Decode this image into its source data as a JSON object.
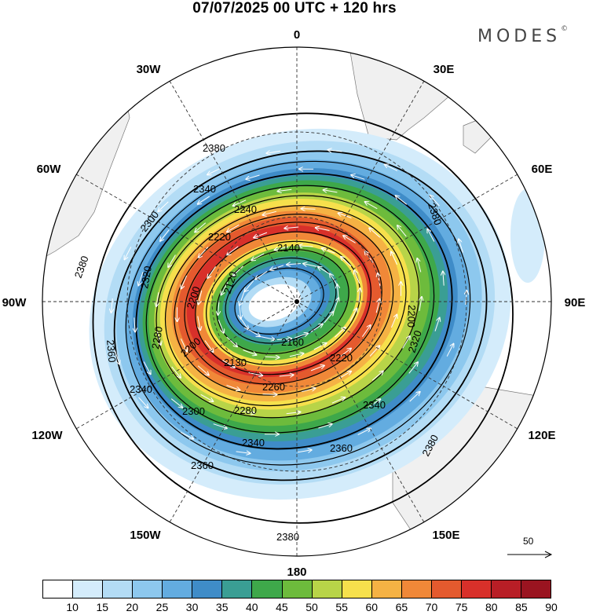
{
  "title": "07/07/2025  00 UTC  + 120 hrs",
  "brand": {
    "name": "MODES",
    "mark": "©"
  },
  "map": {
    "projection": "south-polar-stereographic",
    "longitude_labels": [
      "0",
      "30E",
      "60E",
      "90E",
      "120E",
      "150E",
      "180",
      "150W",
      "120W",
      "90W",
      "60W",
      "30W"
    ],
    "contour_labels": [
      "2380",
      "2360",
      "2340",
      "2320",
      "2300",
      "2280",
      "2260",
      "2240",
      "2220",
      "2200",
      "2160",
      "2140",
      "2130",
      "2120"
    ]
  },
  "wind_vector_reference": {
    "value": "50",
    "icon": "arrow-right-icon"
  },
  "colorbar": {
    "ticks": [
      "10",
      "15",
      "20",
      "25",
      "30",
      "35",
      "40",
      "45",
      "50",
      "55",
      "60",
      "65",
      "70",
      "75",
      "80",
      "85",
      "90"
    ],
    "colors": [
      "#ffffff",
      "#d4ecfb",
      "#b3dcf5",
      "#8dc8ee",
      "#63ace0",
      "#3f8cc8",
      "#3a9e94",
      "#3ea84a",
      "#6dbb3c",
      "#b8d448",
      "#f6e04c",
      "#f5b244",
      "#f08838",
      "#e45a2e",
      "#d8302a",
      "#b81e26",
      "#9a1420"
    ]
  }
}
